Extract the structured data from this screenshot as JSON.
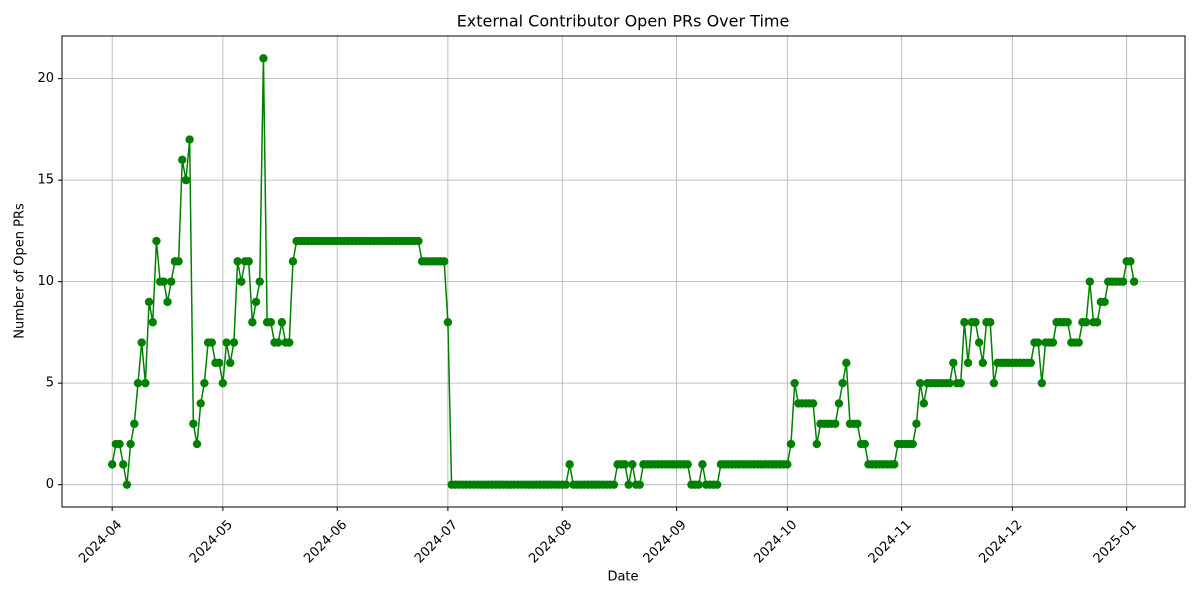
{
  "chart_data": {
    "type": "line",
    "title": "External Contributor Open PRs Over Time",
    "x_label": "Date",
    "y_label": "Number of Open PRs",
    "x": [
      0,
      1,
      2,
      3,
      4,
      5,
      6,
      7,
      8,
      9,
      10,
      11,
      12,
      13,
      14,
      15,
      16,
      17,
      18,
      19,
      20,
      21,
      22,
      23,
      24,
      25,
      26,
      27,
      28,
      29,
      30,
      31,
      32,
      33,
      34,
      35,
      36,
      37,
      38,
      39,
      40,
      41,
      42,
      43,
      44,
      45,
      46,
      47,
      48,
      49,
      50,
      51,
      52,
      53,
      54,
      55,
      56,
      57,
      58,
      59,
      60,
      61,
      62,
      63,
      64,
      65,
      66,
      67,
      68,
      69,
      70,
      71,
      72,
      73,
      74,
      75,
      76,
      77,
      78,
      79,
      80,
      81,
      82,
      83,
      84,
      85,
      86,
      87,
      88,
      89,
      90,
      91,
      92,
      93,
      94,
      95,
      96,
      97,
      98,
      99,
      100,
      101,
      102,
      103,
      104,
      105,
      106,
      107,
      108,
      109,
      110,
      111,
      112,
      113,
      114,
      115,
      116,
      117,
      118,
      119,
      120,
      121,
      122,
      123,
      124,
      125,
      126,
      127,
      128,
      129,
      130,
      131,
      132,
      133,
      134,
      135,
      136,
      137,
      138,
      139,
      140,
      141,
      142,
      143,
      144,
      145,
      146,
      147,
      148,
      149,
      150,
      151,
      152,
      153,
      154,
      155,
      156,
      157,
      158,
      159,
      160,
      161,
      162,
      163,
      164,
      165,
      166,
      167,
      168,
      169,
      170,
      171,
      172,
      173,
      174,
      175,
      176,
      177,
      178,
      179,
      180,
      181,
      182,
      183,
      184,
      185,
      186,
      187,
      188,
      189,
      190,
      191,
      192,
      193,
      194,
      195,
      196,
      197,
      198,
      199,
      200,
      201,
      202,
      203,
      204,
      205,
      206,
      207,
      208,
      209,
      210,
      211,
      212,
      213,
      214,
      215,
      216,
      217,
      218,
      219,
      220,
      221,
      222,
      223,
      224,
      225,
      226,
      227,
      228,
      229,
      230,
      231,
      232,
      233,
      234,
      235,
      236,
      237,
      238,
      239,
      240,
      241,
      242,
      243,
      244,
      245,
      246,
      247,
      248,
      249,
      250,
      251,
      252,
      253,
      254,
      255,
      256,
      257,
      258,
      259,
      260,
      261,
      262,
      263,
      264,
      265,
      266,
      267,
      268,
      269,
      270,
      271,
      272,
      273,
      274,
      275,
      276,
      277
    ],
    "series": [
      {
        "color": "#008000",
        "values": [
          1,
          2,
          2,
          1,
          0,
          2,
          3,
          5,
          7,
          5,
          9,
          8,
          12,
          10,
          10,
          9,
          10,
          11,
          11,
          16,
          15,
          17,
          3,
          2,
          4,
          5,
          7,
          7,
          6,
          6,
          5,
          7,
          6,
          7,
          11,
          10,
          11,
          11,
          8,
          9,
          10,
          21,
          8,
          8,
          7,
          7,
          8,
          7,
          7,
          11,
          12,
          12,
          12,
          12,
          12,
          12,
          12,
          12,
          12,
          12,
          12,
          12,
          12,
          12,
          12,
          12,
          12,
          12,
          12,
          12,
          12,
          12,
          12,
          12,
          12,
          12,
          12,
          12,
          12,
          12,
          12,
          12,
          12,
          12,
          11,
          11,
          11,
          11,
          11,
          11,
          11,
          8,
          0,
          0,
          0,
          0,
          0,
          0,
          0,
          0,
          0,
          0,
          0,
          0,
          0,
          0,
          0,
          0,
          0,
          0,
          0,
          0,
          0,
          0,
          0,
          0,
          0,
          0,
          0,
          0,
          0,
          0,
          0,
          0,
          1,
          0,
          0,
          0,
          0,
          0,
          0,
          0,
          0,
          0,
          0,
          0,
          0,
          1,
          1,
          1,
          0,
          1,
          0,
          0,
          1,
          1,
          1,
          1,
          1,
          1,
          1,
          1,
          1,
          1,
          1,
          1,
          1,
          0,
          0,
          0,
          1,
          0,
          0,
          0,
          0,
          1,
          1,
          1,
          1,
          1,
          1,
          1,
          1,
          1,
          1,
          1,
          1,
          1,
          1,
          1,
          1,
          1,
          1,
          1,
          2,
          5,
          4,
          4,
          4,
          4,
          4,
          2,
          3,
          3,
          3,
          3,
          3,
          4,
          5,
          6,
          3,
          3,
          3,
          2,
          2,
          1,
          1,
          1,
          1,
          1,
          1,
          1,
          1,
          2,
          2,
          2,
          2,
          2,
          3,
          5,
          4,
          5,
          5,
          5,
          5,
          5,
          5,
          5,
          6,
          5,
          5,
          8,
          6,
          8,
          8,
          7,
          6,
          8,
          8,
          5,
          6,
          6,
          6,
          6,
          6,
          6,
          6,
          6,
          6,
          6,
          7,
          7,
          5,
          7,
          7,
          7,
          8,
          8,
          8,
          8,
          7,
          7,
          7,
          8,
          8,
          10,
          8,
          8,
          9,
          9,
          10,
          10,
          10,
          10,
          10,
          11,
          11,
          10
        ]
      }
    ],
    "xlim": [
      -13.6,
      290.8
    ],
    "xticks": [
      {
        "value": 0,
        "label": "2024-04"
      },
      {
        "value": 30,
        "label": "2024-05"
      },
      {
        "value": 61,
        "label": "2024-06"
      },
      {
        "value": 91,
        "label": "2024-07"
      },
      {
        "value": 122,
        "label": "2024-08"
      },
      {
        "value": 153,
        "label": "2024-09"
      },
      {
        "value": 183,
        "label": "2024-10"
      },
      {
        "value": 214,
        "label": "2024-11"
      },
      {
        "value": 244,
        "label": "2024-12"
      },
      {
        "value": 275,
        "label": "2025-01"
      }
    ],
    "ylim": [
      -1.1,
      22.1
    ],
    "yticks": [
      0,
      5,
      10,
      15,
      20
    ],
    "grid": true
  }
}
